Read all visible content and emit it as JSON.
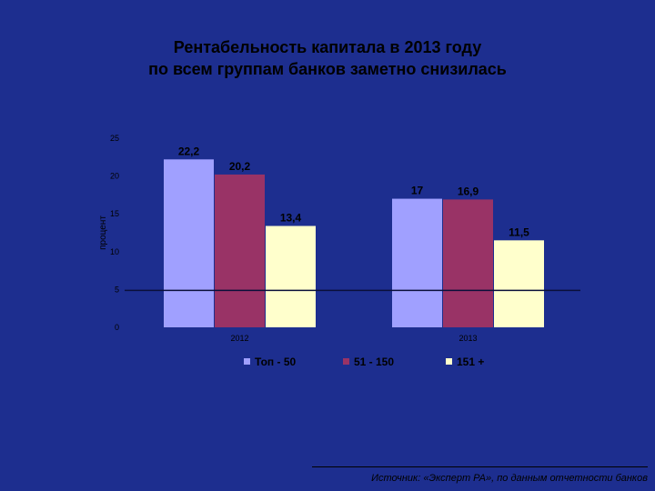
{
  "slide": {
    "title_line1": "Рентабельность капитала в 2013 году",
    "title_line2": "по всем группам банков заметно снизилась",
    "source": "Источник: «Эксперт РА», по данным отчетности банков"
  },
  "chart_data": {
    "type": "bar",
    "title": "",
    "xlabel": "",
    "ylabel": "процент",
    "categories": [
      "2012",
      "2013"
    ],
    "series": [
      {
        "name": "Топ - 50",
        "values": [
          22.2,
          17
        ],
        "labels": [
          "22,2",
          "17"
        ],
        "color": "#a0a0ff"
      },
      {
        "name": "51 - 150",
        "values": [
          20.2,
          16.9
        ],
        "labels": [
          "20,2",
          "16,9"
        ],
        "color": "#993366"
      },
      {
        "name": "151 +",
        "values": [
          13.4,
          11.5
        ],
        "labels": [
          "13,4",
          "11,5"
        ],
        "color": "#ffffcc"
      }
    ],
    "ylim": [
      0,
      25
    ],
    "yticks": [
      0,
      5,
      10,
      15,
      20,
      25
    ],
    "grid": false,
    "legend_position": "bottom"
  }
}
